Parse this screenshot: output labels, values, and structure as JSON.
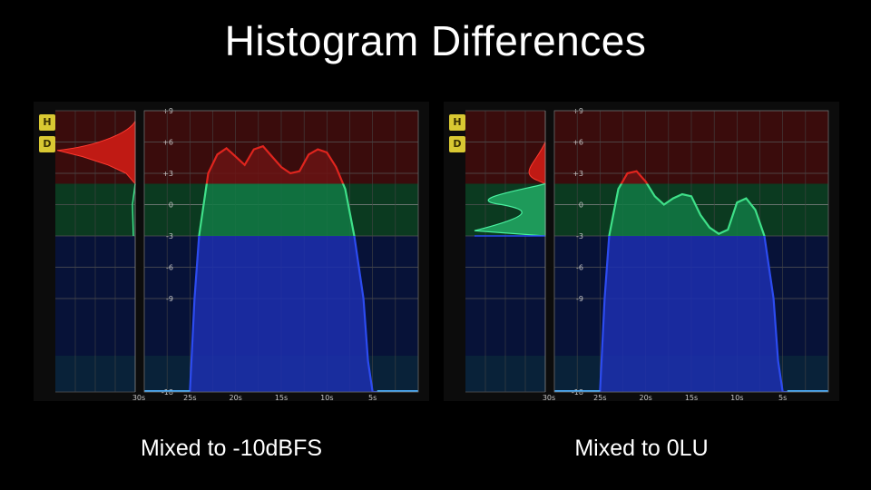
{
  "title": "Histogram Differences",
  "panels": [
    {
      "caption": "Mixed to -10dBFS",
      "buttons": {
        "h": "H",
        "d": "D"
      },
      "y_ticks": [
        "+9",
        "+6",
        "+3",
        "0",
        "-3",
        "-6",
        "-9",
        "-18"
      ],
      "x_ticks": [
        "30s",
        "25s",
        "20s",
        "15s",
        "10s",
        "5s"
      ],
      "chart_data": {
        "type": "area",
        "title": "",
        "xlabel": "",
        "ylabel": "",
        "x": [
          30,
          25,
          24.5,
          24,
          23,
          22,
          21,
          20,
          19,
          18,
          17,
          16,
          15,
          14,
          13,
          12,
          11,
          10,
          9,
          8,
          7,
          6,
          5.5,
          5,
          4.5,
          0
        ],
        "y": [
          -18,
          -18,
          -9,
          -3,
          3,
          4.8,
          5.4,
          4.6,
          3.8,
          5.3,
          5.6,
          4.6,
          3.6,
          3.0,
          3.2,
          4.8,
          5.3,
          5.0,
          3.6,
          1.5,
          -3,
          -9,
          -15,
          -18,
          -18,
          -18
        ],
        "ylim": [
          -18,
          9
        ],
        "zones": {
          "red_above": 2,
          "green_from": -3,
          "blue_below": -3
        },
        "colors": {
          "red": "#e0251e",
          "green": "#3fe089",
          "blue": "#2c4bf0"
        }
      }
    },
    {
      "caption": "Mixed to 0LU",
      "buttons": {
        "h": "H",
        "d": "D"
      },
      "y_ticks": [
        "+9",
        "+6",
        "+3",
        "0",
        "-3",
        "-6",
        "-9",
        "-18"
      ],
      "x_ticks": [
        "30s",
        "25s",
        "20s",
        "15s",
        "10s",
        "5s"
      ],
      "chart_data": {
        "type": "area",
        "title": "",
        "xlabel": "",
        "ylabel": "",
        "x": [
          30,
          25,
          24.5,
          24,
          23,
          22,
          21,
          20,
          19,
          18,
          17,
          16,
          15,
          14,
          13,
          12,
          11,
          10,
          9,
          8,
          7,
          6,
          5.5,
          5,
          4.5,
          0
        ],
        "y": [
          -18,
          -18,
          -9,
          -3,
          1.5,
          3.0,
          3.2,
          2.2,
          0.8,
          0.0,
          0.6,
          1.0,
          0.8,
          -1.0,
          -2.2,
          -2.8,
          -2.4,
          0.2,
          0.6,
          -0.5,
          -3,
          -9,
          -15,
          -18,
          -18,
          -18
        ],
        "ylim": [
          -18,
          9
        ],
        "zones": {
          "red_above": 2,
          "green_from": -3,
          "blue_below": -3
        },
        "colors": {
          "red": "#e0251e",
          "green": "#3fe089",
          "blue": "#2c4bf0"
        }
      }
    }
  ]
}
